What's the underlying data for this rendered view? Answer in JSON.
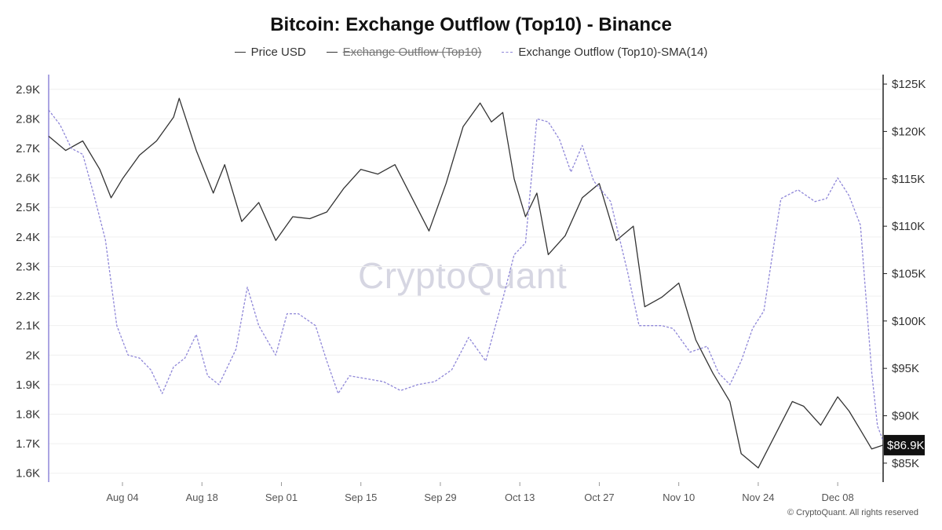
{
  "title": "Bitcoin: Exchange Outflow (Top10) - Binance",
  "legend": [
    {
      "label": "Price USD",
      "color": "#333333",
      "style": "solid",
      "hidden": false
    },
    {
      "label": "Exchange Outflow (Top10)",
      "color": "#333333",
      "style": "solid",
      "hidden": true
    },
    {
      "label": "Exchange Outflow (Top10)-SMA(14)",
      "color": "#8f87d8",
      "style": "dashed",
      "hidden": false
    }
  ],
  "watermark": "CryptoQuant",
  "credit": "© CryptoQuant. All rights reserved",
  "chart_data": {
    "type": "line",
    "title": "Bitcoin: Exchange Outflow (Top10) - Binance",
    "x_start": "2025-07-22",
    "x_end": "2025-12-16",
    "x_tick_dates": [
      "2025-08-04",
      "2025-08-18",
      "2025-09-01",
      "2025-09-15",
      "2025-09-29",
      "2025-10-13",
      "2025-10-27",
      "2025-11-10",
      "2025-11-24",
      "2025-12-08"
    ],
    "x_tick_labels": [
      "Aug 04",
      "Aug 18",
      "Sep 01",
      "Sep 15",
      "Sep 29",
      "Oct 13",
      "Oct 27",
      "Nov 10",
      "Nov 24",
      "Dec 08"
    ],
    "y_left": {
      "range": [
        1570,
        2950
      ],
      "ticks": [
        1600,
        1700,
        1800,
        1900,
        2000,
        2100,
        2200,
        2300,
        2400,
        2500,
        2600,
        2700,
        2800,
        2900
      ],
      "tick_labels": [
        "1.6K",
        "1.7K",
        "1.8K",
        "1.9K",
        "2K",
        "2.1K",
        "2.2K",
        "2.3K",
        "2.4K",
        "2.5K",
        "2.6K",
        "2.7K",
        "2.8K",
        "2.9K"
      ]
    },
    "y_right": {
      "range": [
        83000,
        126000
      ],
      "ticks": [
        85000,
        90000,
        95000,
        100000,
        105000,
        110000,
        115000,
        120000,
        125000
      ],
      "tick_labels": [
        "$85K",
        "$90K",
        "$95K",
        "$100K",
        "$105K",
        "$110K",
        "$115K",
        "$120K",
        "$125K"
      ]
    },
    "grid": true,
    "legend_position": "top",
    "current_price_label": "$86.9K",
    "series": [
      {
        "name": "Price USD",
        "axis": "right",
        "color": "#333333",
        "x": [
          "2025-07-22",
          "2025-07-25",
          "2025-07-28",
          "2025-07-31",
          "2025-08-02",
          "2025-08-04",
          "2025-08-07",
          "2025-08-10",
          "2025-08-13",
          "2025-08-14",
          "2025-08-17",
          "2025-08-20",
          "2025-08-22",
          "2025-08-25",
          "2025-08-28",
          "2025-08-31",
          "2025-09-03",
          "2025-09-06",
          "2025-09-09",
          "2025-09-12",
          "2025-09-15",
          "2025-09-18",
          "2025-09-21",
          "2025-09-24",
          "2025-09-27",
          "2025-09-30",
          "2025-10-03",
          "2025-10-06",
          "2025-10-08",
          "2025-10-10",
          "2025-10-12",
          "2025-10-14",
          "2025-10-16",
          "2025-10-18",
          "2025-10-21",
          "2025-10-24",
          "2025-10-27",
          "2025-10-30",
          "2025-11-02",
          "2025-11-04",
          "2025-11-07",
          "2025-11-10",
          "2025-11-13",
          "2025-11-16",
          "2025-11-19",
          "2025-11-21",
          "2025-11-24",
          "2025-11-27",
          "2025-11-30",
          "2025-12-02",
          "2025-12-05",
          "2025-12-08",
          "2025-12-10",
          "2025-12-12",
          "2025-12-14",
          "2025-12-16"
        ],
        "values": [
          119500,
          118000,
          119000,
          116000,
          113000,
          115000,
          117500,
          119000,
          121500,
          123500,
          118000,
          113500,
          116500,
          110500,
          112500,
          108500,
          111000,
          110800,
          111500,
          114000,
          116000,
          115500,
          116500,
          113000,
          109500,
          114500,
          120500,
          123000,
          121000,
          122000,
          115000,
          111000,
          113500,
          107000,
          109000,
          113000,
          114500,
          108500,
          110000,
          101500,
          102500,
          104000,
          98000,
          94500,
          91500,
          86000,
          84500,
          88000,
          91500,
          91000,
          89000,
          92000,
          90500,
          88500,
          86500,
          86900
        ]
      },
      {
        "name": "Exchange Outflow (Top10)-SMA(14)",
        "axis": "left",
        "color": "#8f87d8",
        "x": [
          "2025-07-22",
          "2025-07-24",
          "2025-07-26",
          "2025-07-28",
          "2025-07-30",
          "2025-08-01",
          "2025-08-03",
          "2025-08-05",
          "2025-08-07",
          "2025-08-09",
          "2025-08-11",
          "2025-08-13",
          "2025-08-15",
          "2025-08-17",
          "2025-08-19",
          "2025-08-21",
          "2025-08-24",
          "2025-08-26",
          "2025-08-28",
          "2025-08-31",
          "2025-09-02",
          "2025-09-04",
          "2025-09-07",
          "2025-09-09",
          "2025-09-11",
          "2025-09-13",
          "2025-09-16",
          "2025-09-19",
          "2025-09-22",
          "2025-09-25",
          "2025-09-28",
          "2025-10-01",
          "2025-10-04",
          "2025-10-07",
          "2025-10-10",
          "2025-10-12",
          "2025-10-14",
          "2025-10-16",
          "2025-10-18",
          "2025-10-20",
          "2025-10-22",
          "2025-10-24",
          "2025-10-26",
          "2025-10-29",
          "2025-11-01",
          "2025-11-03",
          "2025-11-05",
          "2025-11-07",
          "2025-11-09",
          "2025-11-12",
          "2025-11-15",
          "2025-11-17",
          "2025-11-19",
          "2025-11-21",
          "2025-11-23",
          "2025-11-25",
          "2025-11-28",
          "2025-12-01",
          "2025-12-04",
          "2025-12-06",
          "2025-12-08",
          "2025-12-10",
          "2025-12-12",
          "2025-12-14",
          "2025-12-15",
          "2025-12-16"
        ],
        "values": [
          2830,
          2780,
          2700,
          2680,
          2540,
          2390,
          2100,
          2000,
          1990,
          1950,
          1870,
          1960,
          1990,
          2070,
          1930,
          1900,
          2020,
          2230,
          2100,
          2000,
          2140,
          2140,
          2100,
          1980,
          1870,
          1930,
          1920,
          1910,
          1880,
          1900,
          1910,
          1950,
          2060,
          1980,
          2190,
          2340,
          2380,
          2800,
          2790,
          2730,
          2620,
          2710,
          2590,
          2520,
          2280,
          2100,
          2100,
          2100,
          2090,
          2010,
          2030,
          1940,
          1900,
          1980,
          2090,
          2150,
          2530,
          2560,
          2520,
          2530,
          2600,
          2540,
          2440,
          1940,
          1760,
          1710
        ]
      }
    ]
  }
}
